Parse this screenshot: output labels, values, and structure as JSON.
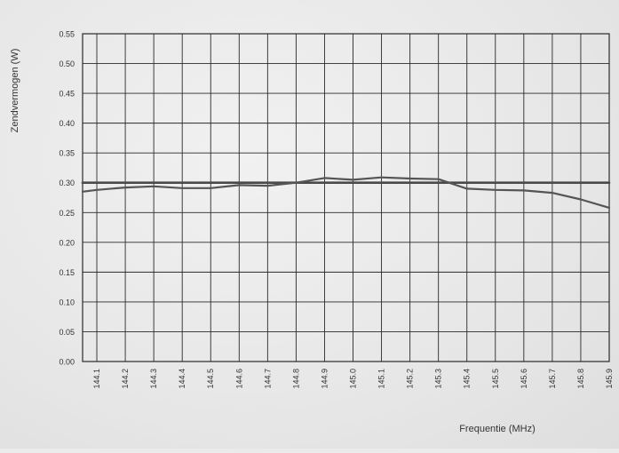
{
  "chart_data": {
    "type": "line",
    "title": "",
    "xlabel": "Frequentie (MHz)",
    "ylabel": "Zendvermogen (W)",
    "xlim": [
      144.05,
      145.9
    ],
    "ylim": [
      0.0,
      0.55
    ],
    "x_ticks": [
      "144.1",
      "144.2",
      "144.3",
      "144.4",
      "144.5",
      "144.6",
      "144.7",
      "144.8",
      "144.9",
      "145.0",
      "145.1",
      "145.2",
      "145.3",
      "145.4",
      "145.5",
      "145.6",
      "145.7",
      "145.8",
      "145.9"
    ],
    "y_ticks": [
      "0.00",
      "0.05",
      "0.10",
      "0.15",
      "0.20",
      "0.25",
      "0.30",
      "0.35",
      "0.40",
      "0.45",
      "0.50",
      "0.55"
    ],
    "grid": true,
    "series": [
      {
        "name": "",
        "color": "#4a4a4a",
        "x": [
          144.05,
          145.9
        ],
        "y": [
          0.3,
          0.3
        ]
      },
      {
        "name": "",
        "color": "#555555",
        "x": [
          144.05,
          144.1,
          144.2,
          144.3,
          144.4,
          144.5,
          144.6,
          144.7,
          144.8,
          144.9,
          145.0,
          145.1,
          145.2,
          145.3,
          145.4,
          145.5,
          145.6,
          145.7,
          145.8,
          145.9
        ],
        "y": [
          0.285,
          0.288,
          0.292,
          0.294,
          0.291,
          0.291,
          0.296,
          0.295,
          0.3,
          0.308,
          0.305,
          0.309,
          0.307,
          0.306,
          0.29,
          0.288,
          0.287,
          0.283,
          0.272,
          0.258
        ]
      }
    ]
  }
}
